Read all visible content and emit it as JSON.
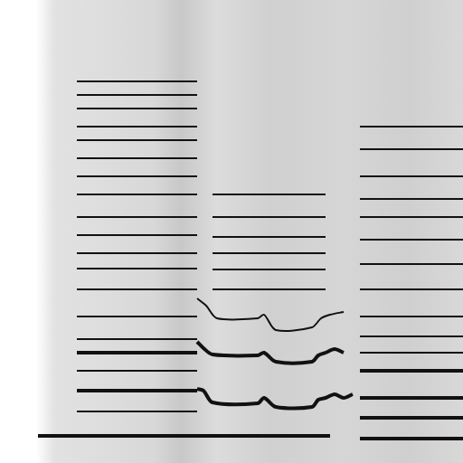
{
  "chart_data": {
    "type": "scatter",
    "color": "#111111",
    "tick_labels": false,
    "grid": false,
    "xlim": [
      0,
      512
    ],
    "ylim": [
      0,
      512
    ],
    "series": [
      {
        "x": [
          42,
          218
        ],
        "values": [
          30,
          30
        ],
        "line_style": "bold"
      },
      {
        "x": [
          218,
          365
        ],
        "values": [
          30,
          30
        ],
        "line_style": "bold"
      },
      {
        "x": [
          398,
          512
        ],
        "values": [
          27,
          27
        ],
        "line_style": "bold"
      },
      {
        "x": [
          85,
          218
        ],
        "values": [
          57,
          57
        ],
        "line_style": "solid"
      },
      {
        "x": [
          85,
          218
        ],
        "values": [
          80,
          80
        ],
        "line_style": "bold"
      },
      {
        "x": [
          85,
          218
        ],
        "values": [
          102,
          102
        ],
        "line_style": "solid"
      },
      {
        "x": [
          85,
          218
        ],
        "values": [
          122,
          122
        ],
        "line_style": "bold"
      },
      {
        "x": [
          85,
          218
        ],
        "values": [
          137,
          137
        ],
        "line_style": "solid"
      },
      {
        "x": [
          85,
          218
        ],
        "values": [
          162,
          162
        ],
        "line_style": "solid"
      },
      {
        "x": [
          85,
          218
        ],
        "values": [
          192,
          192
        ],
        "line_style": "solid"
      },
      {
        "x": [
          85,
          218
        ],
        "values": [
          215,
          215
        ],
        "line_style": "solid"
      },
      {
        "x": [
          85,
          218
        ],
        "values": [
          232,
          232
        ],
        "line_style": "solid"
      },
      {
        "x": [
          85,
          218
        ],
        "values": [
          252,
          252
        ],
        "line_style": "solid"
      },
      {
        "x": [
          85,
          218
        ],
        "values": [
          272,
          272
        ],
        "line_style": "solid"
      },
      {
        "x": [
          85,
          218
        ],
        "values": [
          297,
          297
        ],
        "line_style": "solid"
      },
      {
        "x": [
          85,
          218
        ],
        "values": [
          317,
          317
        ],
        "line_style": "solid"
      },
      {
        "x": [
          85,
          218
        ],
        "values": [
          337,
          337
        ],
        "line_style": "solid"
      },
      {
        "x": [
          85,
          218
        ],
        "values": [
          357,
          357
        ],
        "line_style": "solid"
      },
      {
        "x": [
          85,
          218
        ],
        "values": [
          372,
          372
        ],
        "line_style": "solid"
      },
      {
        "x": [
          85,
          218
        ],
        "values": [
          392,
          392
        ],
        "line_style": "solid"
      },
      {
        "x": [
          85,
          218
        ],
        "values": [
          407,
          407
        ],
        "line_style": "solid"
      },
      {
        "x": [
          85,
          218
        ],
        "values": [
          422,
          422
        ],
        "line_style": "solid"
      },
      {
        "x": [
          218,
          225,
          235,
          285,
          292,
          305,
          345,
          352,
          360,
          370,
          380,
          390
        ],
        "values": [
          82,
          80,
          67,
          66,
          72,
          62,
          62,
          70,
          72,
          76,
          72,
          76
        ],
        "line_style": "bold"
      },
      {
        "x": [
          218,
          225,
          235,
          285,
          292,
          305,
          345,
          352,
          360,
          370,
          380
        ],
        "values": [
          134,
          127,
          120,
          119,
          122,
          112,
          112,
          119,
          122,
          126,
          122
        ],
        "line_style": "bold"
      },
      {
        "x": [
          218,
          228,
          240,
          285,
          292,
          305,
          345,
          355,
          365,
          380
        ],
        "values": [
          182,
          174,
          160,
          160,
          164,
          147,
          150,
          160,
          164,
          167
        ],
        "line_style": "solid"
      },
      {
        "x": [
          235,
          360
        ],
        "values": [
          192,
          192
        ],
        "line_style": "solid"
      },
      {
        "x": [
          235,
          360
        ],
        "values": [
          214,
          214
        ],
        "line_style": "solid"
      },
      {
        "x": [
          235,
          360
        ],
        "values": [
          232,
          232
        ],
        "line_style": "solid"
      },
      {
        "x": [
          235,
          360
        ],
        "values": [
          250,
          250
        ],
        "line_style": "solid"
      },
      {
        "x": [
          235,
          360
        ],
        "values": [
          272,
          272
        ],
        "line_style": "solid"
      },
      {
        "x": [
          235,
          360
        ],
        "values": [
          297,
          297
        ],
        "line_style": "solid"
      },
      {
        "x": [
          398,
          512
        ],
        "values": [
          50,
          50
        ],
        "line_style": "bold"
      },
      {
        "x": [
          398,
          512
        ],
        "values": [
          72,
          72
        ],
        "line_style": "bold"
      },
      {
        "x": [
          398,
          512
        ],
        "values": [
          102,
          102
        ],
        "line_style": "bold"
      },
      {
        "x": [
          398,
          512
        ],
        "values": [
          122,
          122
        ],
        "line_style": "solid"
      },
      {
        "x": [
          398,
          512
        ],
        "values": [
          140,
          140
        ],
        "line_style": "solid"
      },
      {
        "x": [
          398,
          512
        ],
        "values": [
          162,
          162
        ],
        "line_style": "solid"
      },
      {
        "x": [
          398,
          512
        ],
        "values": [
          192,
          192
        ],
        "line_style": "solid"
      },
      {
        "x": [
          398,
          512
        ],
        "values": [
          220,
          220
        ],
        "line_style": "solid"
      },
      {
        "x": [
          398,
          512
        ],
        "values": [
          247,
          247
        ],
        "line_style": "solid"
      },
      {
        "x": [
          398,
          512
        ],
        "values": [
          272,
          272
        ],
        "line_style": "solid"
      },
      {
        "x": [
          398,
          512
        ],
        "values": [
          292,
          292
        ],
        "line_style": "solid"
      },
      {
        "x": [
          398,
          512
        ],
        "values": [
          317,
          317
        ],
        "line_style": "solid"
      },
      {
        "x": [
          398,
          512
        ],
        "values": [
          347,
          347
        ],
        "line_style": "solid"
      },
      {
        "x": [
          398,
          512
        ],
        "values": [
          372,
          372
        ],
        "line_style": "solid"
      }
    ]
  }
}
